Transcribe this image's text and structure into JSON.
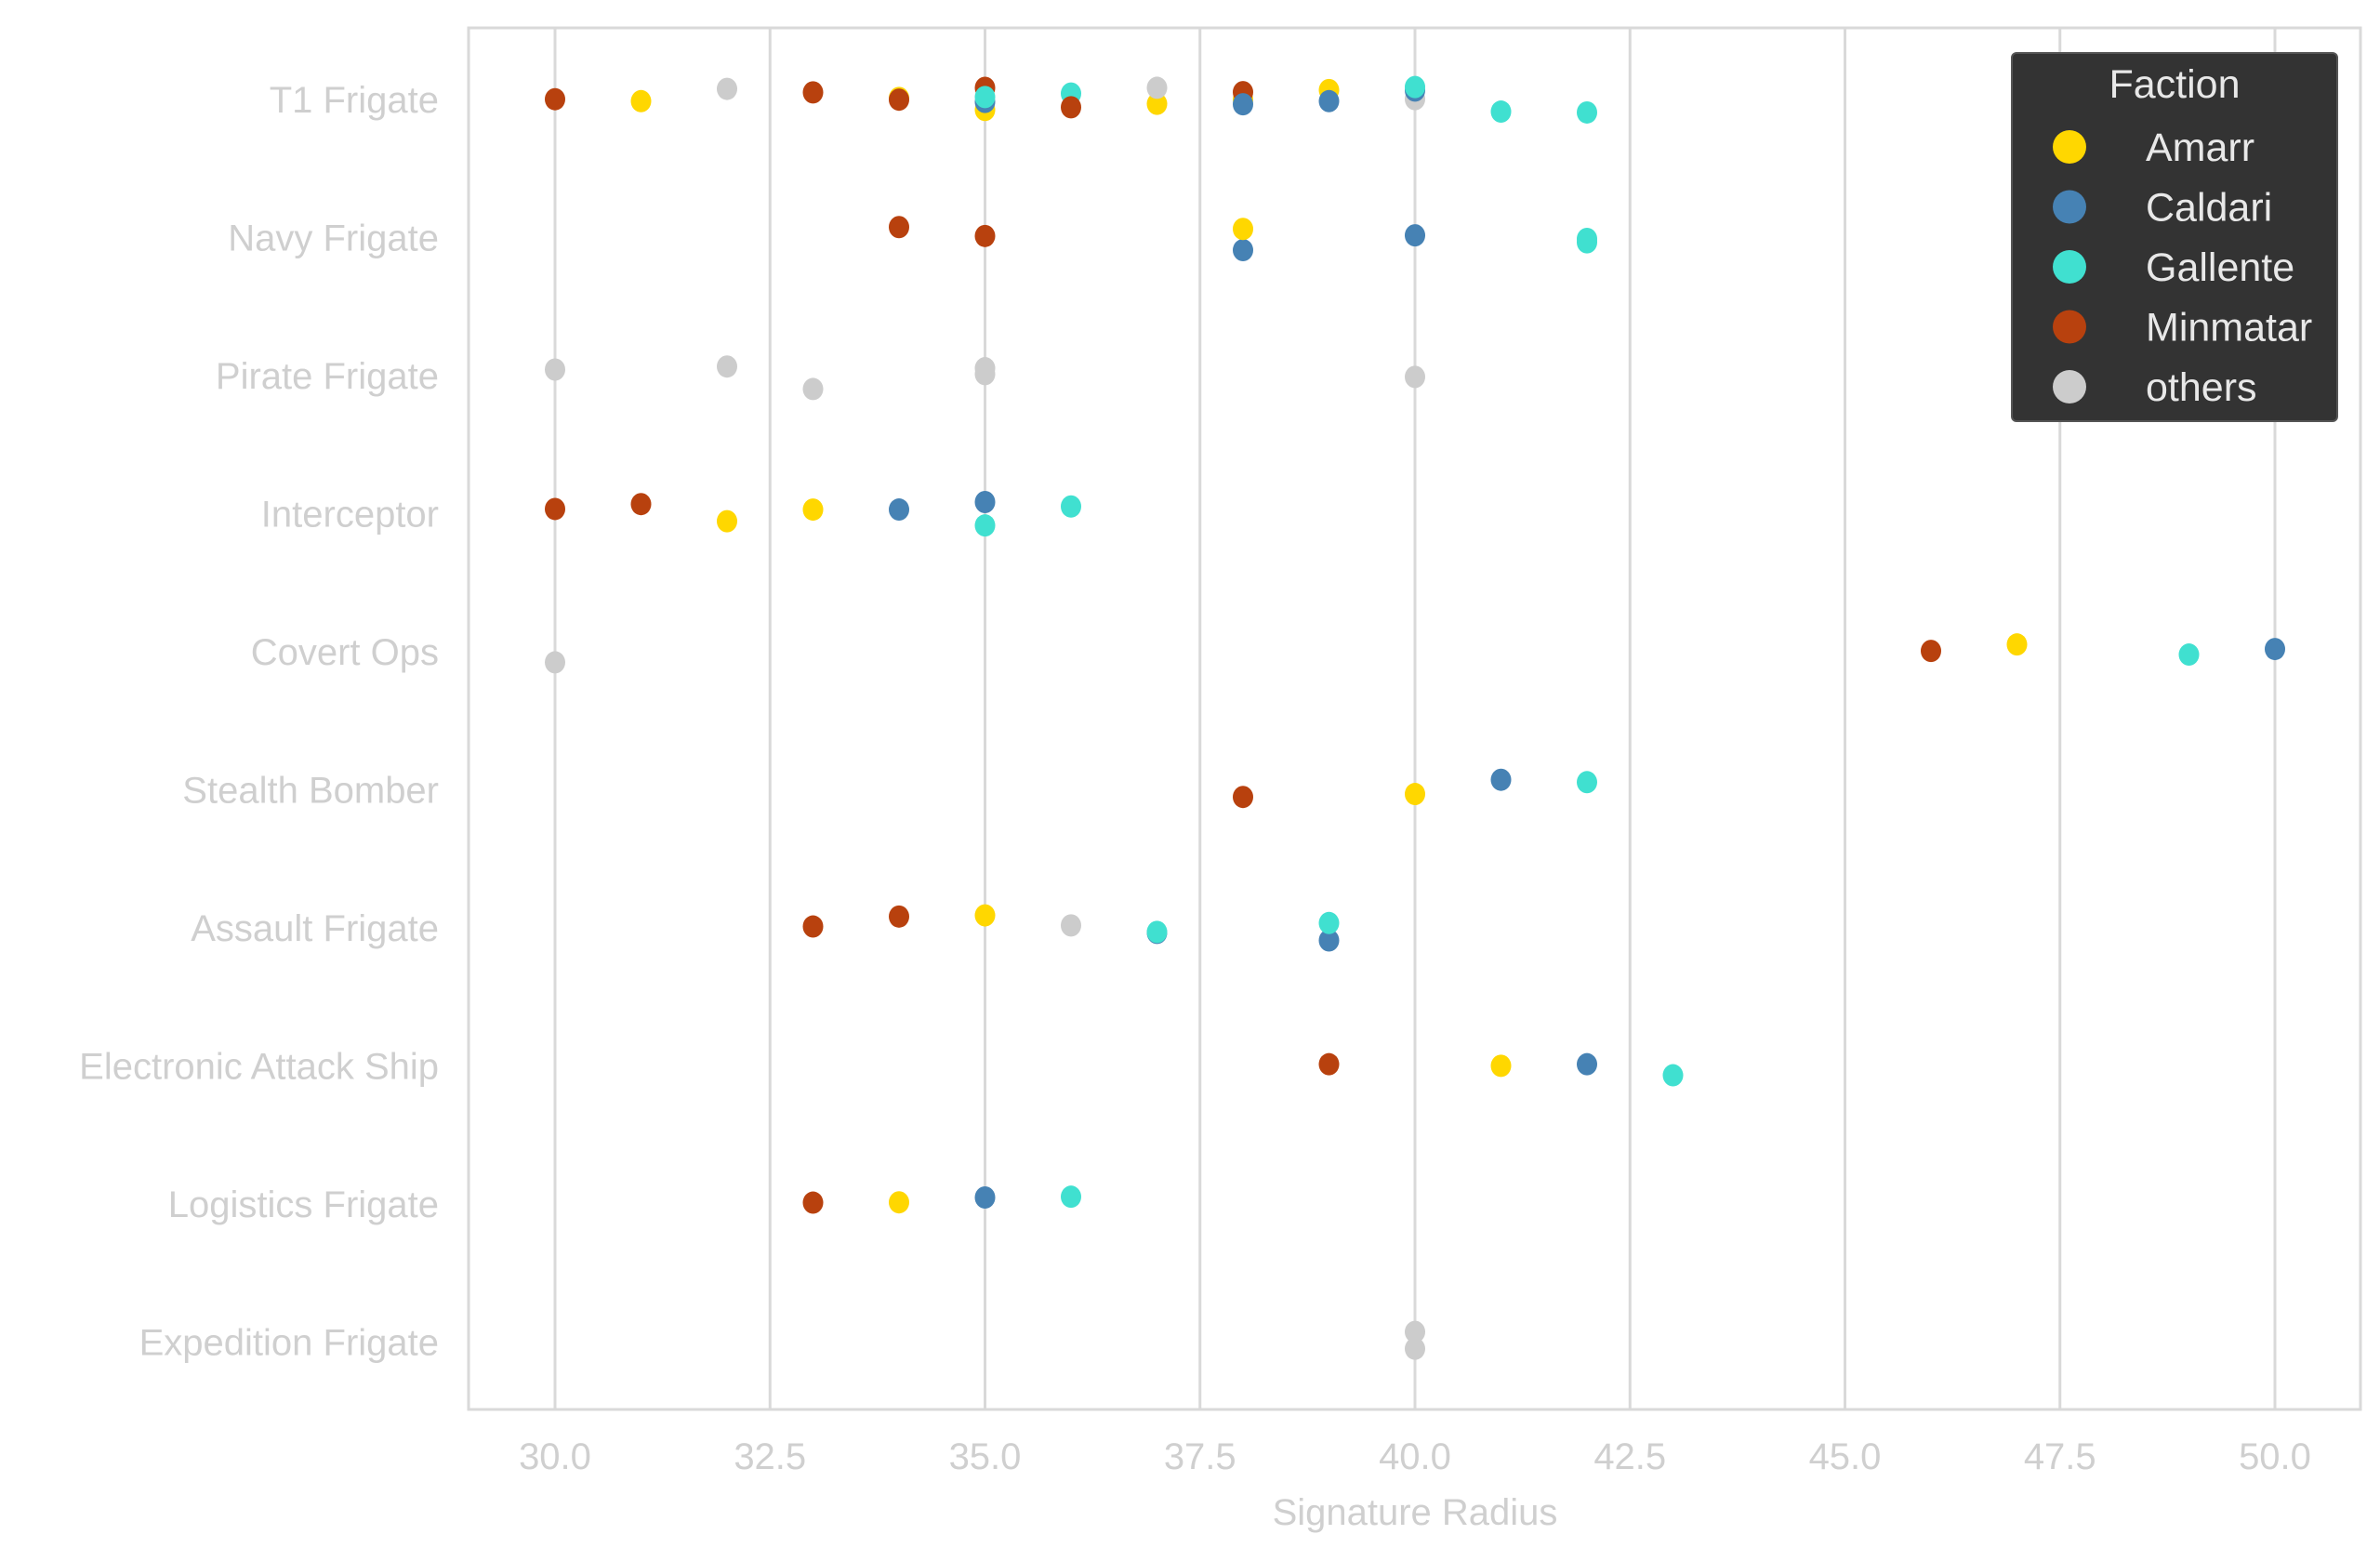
{
  "chart_data": {
    "type": "scatter",
    "subtype": "strip",
    "title": "",
    "xlabel": "Signature Radius",
    "ylabel": "",
    "xlim": [
      29,
      51
    ],
    "xticks": [
      "30.0",
      "32.5",
      "35.0",
      "37.5",
      "40.0",
      "42.5",
      "45.0",
      "47.5",
      "50.0"
    ],
    "grid": "vertical",
    "categories": [
      "T1 Frigate",
      "Navy Frigate",
      "Pirate Frigate",
      "Interceptor",
      "Covert Ops",
      "Stealth Bomber",
      "Assault Frigate",
      "Electronic Attack Ship",
      "Logistics Frigate",
      "Expedition Frigate"
    ],
    "legend": {
      "title": "Faction",
      "placement": "top-right",
      "entries": [
        "Amarr",
        "Caldari",
        "Gallente",
        "Minmatar",
        "others"
      ]
    },
    "colors": {
      "Amarr": "#ffd700",
      "Caldari": "#4682b4",
      "Gallente": "#40e0d0",
      "Minmatar": "#b8410e",
      "others": "#cccccc"
    },
    "points": [
      {
        "category": "T1 Frigate",
        "faction": "Minmatar",
        "x": 30
      },
      {
        "category": "T1 Frigate",
        "faction": "Amarr",
        "x": 31
      },
      {
        "category": "T1 Frigate",
        "faction": "others",
        "x": 32
      },
      {
        "category": "T1 Frigate",
        "faction": "Minmatar",
        "x": 33
      },
      {
        "category": "T1 Frigate",
        "faction": "Amarr",
        "x": 34
      },
      {
        "category": "T1 Frigate",
        "faction": "Minmatar",
        "x": 34
      },
      {
        "category": "T1 Frigate",
        "faction": "Minmatar",
        "x": 35
      },
      {
        "category": "T1 Frigate",
        "faction": "Amarr",
        "x": 35
      },
      {
        "category": "T1 Frigate",
        "faction": "Caldari",
        "x": 35
      },
      {
        "category": "T1 Frigate",
        "faction": "Gallente",
        "x": 35
      },
      {
        "category": "T1 Frigate",
        "faction": "Gallente",
        "x": 36
      },
      {
        "category": "T1 Frigate",
        "faction": "Minmatar",
        "x": 36
      },
      {
        "category": "T1 Frigate",
        "faction": "Amarr",
        "x": 37
      },
      {
        "category": "T1 Frigate",
        "faction": "others",
        "x": 37
      },
      {
        "category": "T1 Frigate",
        "faction": "Amarr",
        "x": 38
      },
      {
        "category": "T1 Frigate",
        "faction": "Minmatar",
        "x": 38
      },
      {
        "category": "T1 Frigate",
        "faction": "Caldari",
        "x": 38
      },
      {
        "category": "T1 Frigate",
        "faction": "Amarr",
        "x": 39
      },
      {
        "category": "T1 Frigate",
        "faction": "Caldari",
        "x": 39
      },
      {
        "category": "T1 Frigate",
        "faction": "others",
        "x": 40
      },
      {
        "category": "T1 Frigate",
        "faction": "Caldari",
        "x": 40
      },
      {
        "category": "T1 Frigate",
        "faction": "Gallente",
        "x": 40
      },
      {
        "category": "T1 Frigate",
        "faction": "Gallente",
        "x": 41
      },
      {
        "category": "T1 Frigate",
        "faction": "Gallente",
        "x": 42
      },
      {
        "category": "Navy Frigate",
        "faction": "Minmatar",
        "x": 34
      },
      {
        "category": "Navy Frigate",
        "faction": "Minmatar",
        "x": 35
      },
      {
        "category": "Navy Frigate",
        "faction": "Caldari",
        "x": 38
      },
      {
        "category": "Navy Frigate",
        "faction": "Amarr",
        "x": 38
      },
      {
        "category": "Navy Frigate",
        "faction": "Caldari",
        "x": 40
      },
      {
        "category": "Navy Frigate",
        "faction": "Gallente",
        "x": 42
      },
      {
        "category": "Navy Frigate",
        "faction": "Gallente",
        "x": 42
      },
      {
        "category": "Pirate Frigate",
        "faction": "others",
        "x": 30
      },
      {
        "category": "Pirate Frigate",
        "faction": "others",
        "x": 32
      },
      {
        "category": "Pirate Frigate",
        "faction": "others",
        "x": 33
      },
      {
        "category": "Pirate Frigate",
        "faction": "others",
        "x": 35
      },
      {
        "category": "Pirate Frigate",
        "faction": "others",
        "x": 35
      },
      {
        "category": "Pirate Frigate",
        "faction": "others",
        "x": 40
      },
      {
        "category": "Interceptor",
        "faction": "Minmatar",
        "x": 30
      },
      {
        "category": "Interceptor",
        "faction": "Minmatar",
        "x": 31
      },
      {
        "category": "Interceptor",
        "faction": "Amarr",
        "x": 32
      },
      {
        "category": "Interceptor",
        "faction": "Amarr",
        "x": 33
      },
      {
        "category": "Interceptor",
        "faction": "Caldari",
        "x": 34
      },
      {
        "category": "Interceptor",
        "faction": "Caldari",
        "x": 35
      },
      {
        "category": "Interceptor",
        "faction": "Gallente",
        "x": 35
      },
      {
        "category": "Interceptor",
        "faction": "Gallente",
        "x": 36
      },
      {
        "category": "Covert Ops",
        "faction": "others",
        "x": 30
      },
      {
        "category": "Covert Ops",
        "faction": "Minmatar",
        "x": 46
      },
      {
        "category": "Covert Ops",
        "faction": "Amarr",
        "x": 47
      },
      {
        "category": "Covert Ops",
        "faction": "Gallente",
        "x": 49
      },
      {
        "category": "Covert Ops",
        "faction": "Caldari",
        "x": 50
      },
      {
        "category": "Stealth Bomber",
        "faction": "Minmatar",
        "x": 38
      },
      {
        "category": "Stealth Bomber",
        "faction": "Amarr",
        "x": 40
      },
      {
        "category": "Stealth Bomber",
        "faction": "Caldari",
        "x": 41
      },
      {
        "category": "Stealth Bomber",
        "faction": "Gallente",
        "x": 42
      },
      {
        "category": "Assault Frigate",
        "faction": "Minmatar",
        "x": 33
      },
      {
        "category": "Assault Frigate",
        "faction": "Minmatar",
        "x": 34
      },
      {
        "category": "Assault Frigate",
        "faction": "Amarr",
        "x": 35
      },
      {
        "category": "Assault Frigate",
        "faction": "others",
        "x": 36
      },
      {
        "category": "Assault Frigate",
        "faction": "Caldari",
        "x": 37
      },
      {
        "category": "Assault Frigate",
        "faction": "Gallente",
        "x": 37
      },
      {
        "category": "Assault Frigate",
        "faction": "Caldari",
        "x": 39
      },
      {
        "category": "Assault Frigate",
        "faction": "Gallente",
        "x": 39
      },
      {
        "category": "Electronic Attack Ship",
        "faction": "Minmatar",
        "x": 39
      },
      {
        "category": "Electronic Attack Ship",
        "faction": "Amarr",
        "x": 41
      },
      {
        "category": "Electronic Attack Ship",
        "faction": "Caldari",
        "x": 42
      },
      {
        "category": "Electronic Attack Ship",
        "faction": "Gallente",
        "x": 43
      },
      {
        "category": "Logistics Frigate",
        "faction": "Minmatar",
        "x": 33
      },
      {
        "category": "Logistics Frigate",
        "faction": "Amarr",
        "x": 34
      },
      {
        "category": "Logistics Frigate",
        "faction": "Caldari",
        "x": 35
      },
      {
        "category": "Logistics Frigate",
        "faction": "Gallente",
        "x": 36
      },
      {
        "category": "Expedition Frigate",
        "faction": "others",
        "x": 40
      },
      {
        "category": "Expedition Frigate",
        "faction": "others",
        "x": 40
      }
    ]
  }
}
